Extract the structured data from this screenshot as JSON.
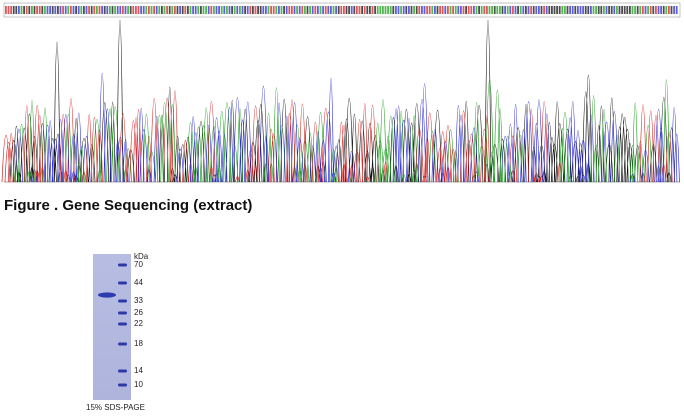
{
  "figure": {
    "caption": "Figure . Gene Sequencing (extract)"
  },
  "gel": {
    "unit": "kDa",
    "markers": [
      "70",
      "44",
      "33",
      "26",
      "22",
      "18",
      "14",
      "10"
    ],
    "caption": "15% SDS-PAGE"
  }
}
